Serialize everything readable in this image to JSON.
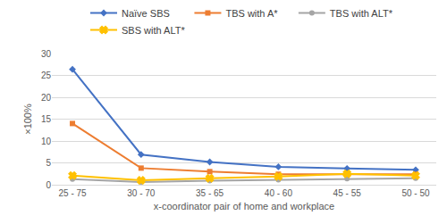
{
  "chart_data": {
    "type": "line",
    "x_label": "x-coordinator pair of home and workplace",
    "y_label": "×100%",
    "categories": [
      "25 - 75",
      "30 - 70",
      "35 - 65",
      "40 - 60",
      "45 - 55",
      "50 - 50"
    ],
    "series": [
      {
        "name": "Naïve SBS",
        "color": "#4472c4",
        "marker": "diamond",
        "line_style": "solid",
        "values": [
          26.4,
          6.9,
          5.2,
          4.1,
          3.7,
          3.4
        ]
      },
      {
        "name": "TBS with A*",
        "color": "#ed7d31",
        "marker": "square",
        "line_style": "solid",
        "values": [
          14.0,
          3.8,
          3.0,
          2.4,
          2.4,
          2.4
        ]
      },
      {
        "name": "TBS with ALT*",
        "color": "#a5a5a5",
        "marker": "circle",
        "line_style": "solid",
        "values": [
          1.3,
          0.6,
          0.9,
          1.1,
          1.4,
          1.5
        ]
      },
      {
        "name": "SBS with ALT*",
        "color": "#ffc000",
        "marker": "x",
        "line_style": "solid",
        "values": [
          2.1,
          1.0,
          1.5,
          1.9,
          2.5,
          2.1
        ]
      }
    ],
    "ylim": [
      0,
      30
    ],
    "yticks": [
      0,
      5,
      10,
      15,
      20,
      25,
      30
    ],
    "grid": true,
    "legend": "top"
  }
}
